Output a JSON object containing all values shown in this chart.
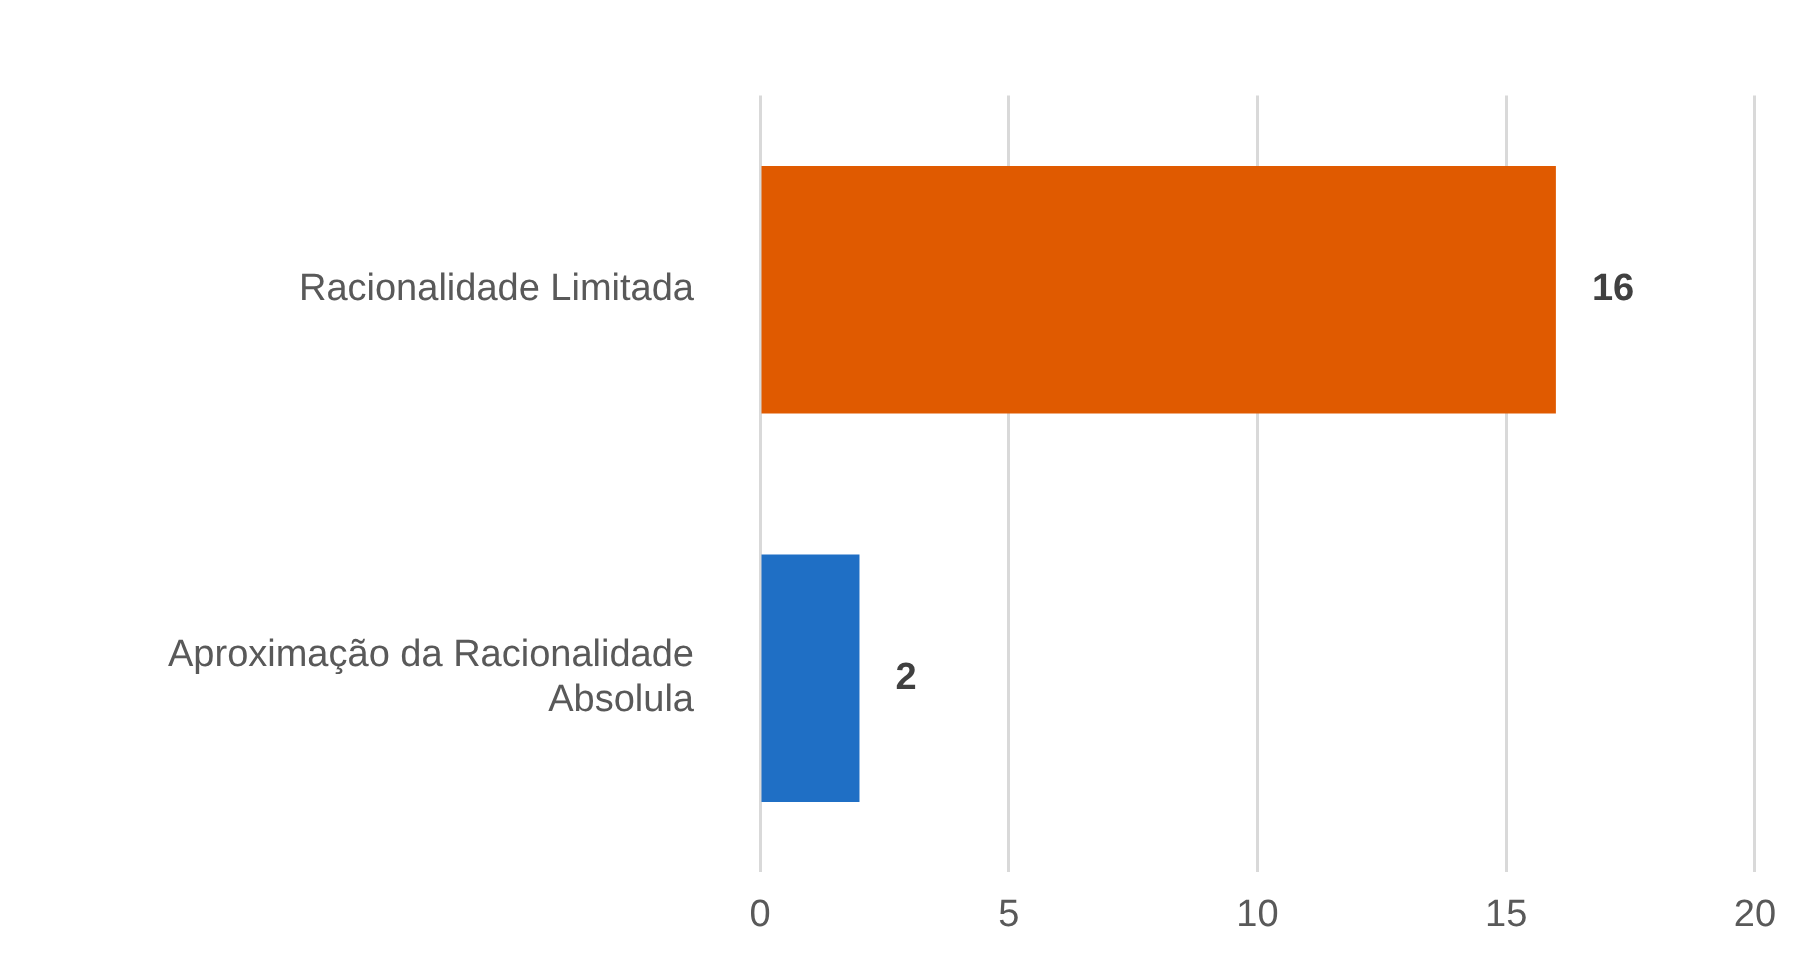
{
  "chart_data": {
    "type": "bar",
    "orientation": "horizontal",
    "categories": [
      "Racionalidade Limitada",
      "Aproximação da Racionalidade Absolula"
    ],
    "values": [
      16,
      2
    ],
    "colors": [
      "#e05a00",
      "#1f6fc5"
    ],
    "xlim": [
      0,
      20
    ],
    "xticks": [
      0,
      5,
      10,
      15,
      20
    ],
    "grid": "x",
    "legend": false,
    "data_labels": true
  }
}
